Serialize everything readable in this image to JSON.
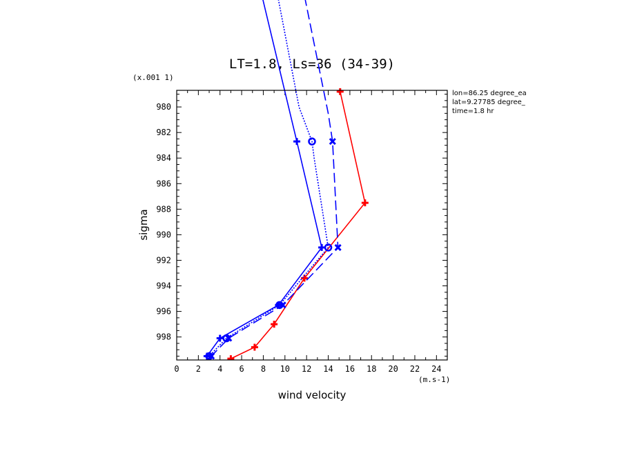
{
  "chart_data": {
    "type": "line",
    "title": "LT=1.8, Ls=36 (34-39)",
    "xlabel": "wind velocity",
    "ylabel": "sigma",
    "x_units": "(m.s-1)",
    "y_scale_note": "(x.001 1)",
    "xlim": [
      0,
      25
    ],
    "ylim": [
      978.7,
      999.8
    ],
    "y_inverted": true,
    "x_ticks": [
      "0",
      "2",
      "4",
      "6",
      "8",
      "10",
      "12",
      "14",
      "16",
      "18",
      "20",
      "22",
      "24"
    ],
    "y_ticks": [
      "980",
      "982",
      "984",
      "986",
      "988",
      "990",
      "992",
      "994",
      "996",
      "998"
    ],
    "info_lines": [
      "lon=86.25 degree_ea",
      "lat=9.27785 degree_",
      "time=1.8 hr"
    ],
    "grid": false,
    "series": [
      {
        "color": "#ff0000",
        "dash": "solid",
        "marker": "plus",
        "points": [
          [
            15.1,
            978.8
          ],
          [
            17.4,
            987.5
          ],
          [
            11.8,
            993.4
          ],
          [
            9.0,
            997.0
          ],
          [
            7.2,
            998.8
          ],
          [
            5.0,
            999.7
          ]
        ]
      },
      {
        "color": "#0000ff",
        "dash": "solid",
        "marker": "plus",
        "points": [
          [
            6.1,
            965.0
          ],
          [
            11.1,
            982.7
          ],
          [
            13.4,
            991.0
          ],
          [
            9.4,
            995.5
          ],
          [
            4.0,
            998.1
          ],
          [
            2.8,
            999.5
          ]
        ]
      },
      {
        "color": "#0000ff",
        "dash": "dotted",
        "marker": "circle",
        "points": [
          [
            7.9,
            965.0
          ],
          [
            11.3,
            980.0
          ],
          [
            12.1,
            981.8
          ],
          [
            12.5,
            982.7
          ],
          [
            12.7,
            984.0
          ],
          [
            14.0,
            991.0
          ],
          [
            9.5,
            995.5
          ],
          [
            4.6,
            998.1
          ],
          [
            3.0,
            999.5
          ]
        ]
      },
      {
        "color": "#0000ff",
        "dash": "dashed",
        "marker": "x",
        "points": [
          [
            10.3,
            965.0
          ],
          [
            14.0,
            980.5
          ],
          [
            14.4,
            982.7
          ],
          [
            14.9,
            991.0
          ],
          [
            9.8,
            995.5
          ],
          [
            4.8,
            998.1
          ],
          [
            3.2,
            999.5
          ]
        ]
      }
    ]
  }
}
